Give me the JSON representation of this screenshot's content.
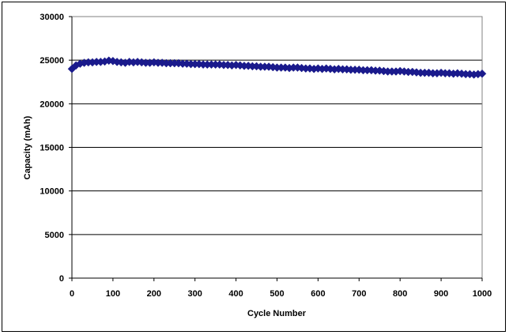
{
  "chart_data": {
    "type": "scatter",
    "title": "",
    "xlabel": "Cycle Number",
    "ylabel": "Capacity (mAh)",
    "xlim": [
      0,
      1000
    ],
    "ylim": [
      0,
      30000
    ],
    "xticks": [
      0,
      100,
      200,
      300,
      400,
      500,
      600,
      700,
      800,
      900,
      1000
    ],
    "yticks": [
      0,
      5000,
      10000,
      15000,
      20000,
      25000,
      30000
    ],
    "grid": "horizontal",
    "legend": "none",
    "marker": "diamond",
    "colors": {
      "marker": "#1a1a8c",
      "grid": "#000000",
      "plot_border": "#808080"
    },
    "series": [
      {
        "x": [
          0,
          10,
          20,
          30,
          40,
          50,
          60,
          70,
          80,
          90,
          100,
          110,
          120,
          130,
          140,
          150,
          160,
          170,
          180,
          190,
          200,
          210,
          220,
          230,
          240,
          250,
          260,
          270,
          280,
          290,
          300,
          310,
          320,
          330,
          340,
          350,
          360,
          370,
          380,
          390,
          400,
          410,
          420,
          430,
          440,
          450,
          460,
          470,
          480,
          490,
          500,
          510,
          520,
          530,
          540,
          550,
          560,
          570,
          580,
          590,
          600,
          610,
          620,
          630,
          640,
          650,
          660,
          670,
          680,
          690,
          700,
          710,
          720,
          730,
          740,
          750,
          760,
          770,
          780,
          790,
          800,
          810,
          820,
          830,
          840,
          850,
          860,
          870,
          880,
          890,
          900,
          910,
          920,
          930,
          940,
          950,
          960,
          970,
          980,
          990,
          1000
        ],
        "y": [
          24000,
          24400,
          24600,
          24700,
          24750,
          24750,
          24800,
          24800,
          24850,
          24950,
          24900,
          24800,
          24750,
          24700,
          24800,
          24750,
          24800,
          24750,
          24700,
          24700,
          24750,
          24700,
          24700,
          24650,
          24650,
          24650,
          24650,
          24600,
          24600,
          24550,
          24550,
          24550,
          24500,
          24500,
          24500,
          24500,
          24500,
          24450,
          24450,
          24400,
          24450,
          24400,
          24350,
          24350,
          24300,
          24300,
          24250,
          24250,
          24250,
          24200,
          24150,
          24150,
          24150,
          24100,
          24150,
          24150,
          24100,
          24050,
          24050,
          24000,
          24050,
          24000,
          24050,
          24000,
          23950,
          24000,
          23950,
          23950,
          23900,
          23900,
          23900,
          23850,
          23850,
          23850,
          23800,
          23800,
          23750,
          23700,
          23700,
          23700,
          23750,
          23700,
          23650,
          23650,
          23600,
          23550,
          23550,
          23550,
          23500,
          23500,
          23550,
          23500,
          23500,
          23450,
          23500,
          23450,
          23400,
          23400,
          23350,
          23400,
          23450
        ]
      }
    ]
  }
}
